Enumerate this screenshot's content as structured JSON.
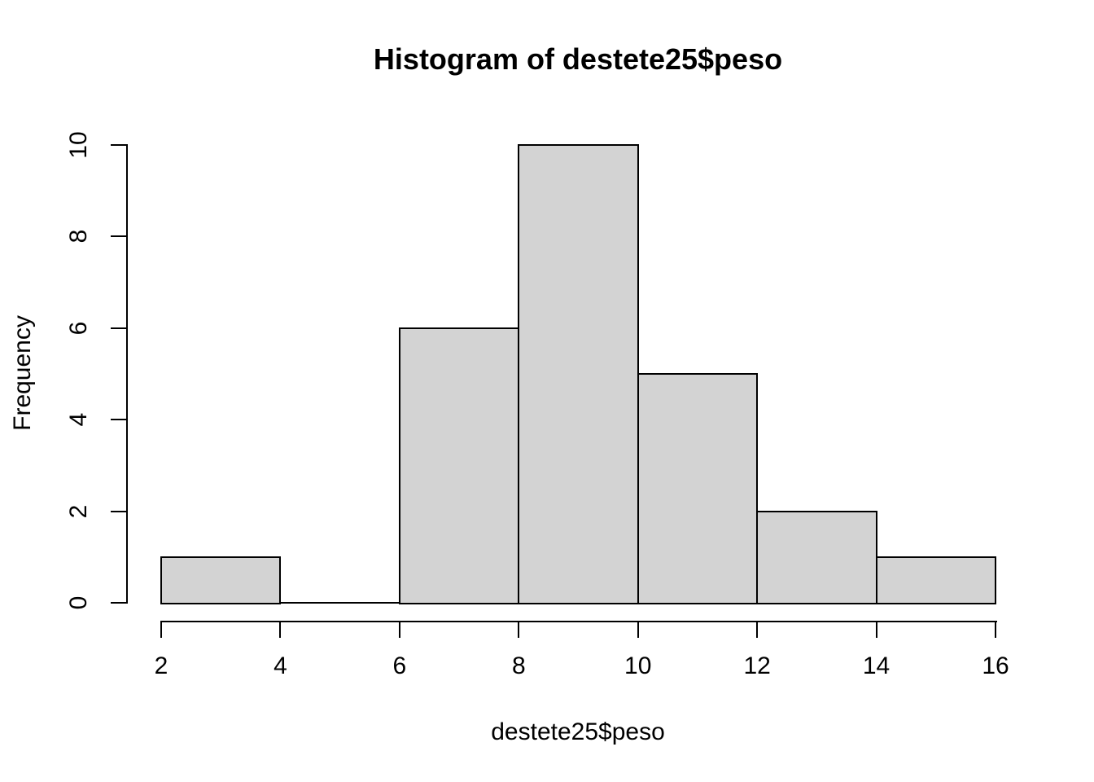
{
  "chart_data": {
    "type": "histogram",
    "title": "Histogram of destete25$peso",
    "xlabel": "destete25$peso",
    "ylabel": "Frequency",
    "bin_edges": [
      2,
      4,
      6,
      8,
      10,
      12,
      14,
      16
    ],
    "counts": [
      1,
      0,
      6,
      10,
      5,
      2,
      1
    ],
    "xticks": [
      2,
      4,
      6,
      8,
      10,
      12,
      14,
      16
    ],
    "yticks": [
      0,
      2,
      4,
      6,
      8,
      10
    ],
    "xlim": [
      2,
      16
    ],
    "ylim": [
      0,
      10
    ],
    "grid": false,
    "legend": null,
    "bar_fill": "#d3d3d3",
    "bar_border": "#000000",
    "background": "#ffffff"
  }
}
